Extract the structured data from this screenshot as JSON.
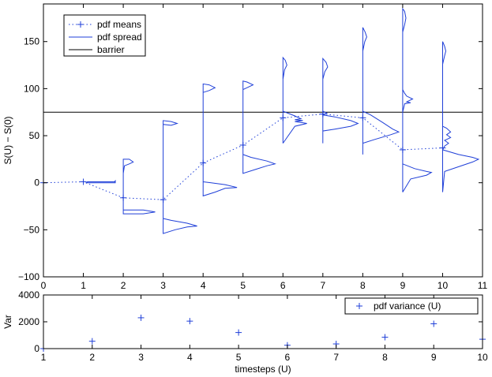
{
  "colors": {
    "series": "#1f3fd8",
    "axis": "#000000",
    "barrier": "#000000",
    "background": "#ffffff"
  },
  "chart_data": [
    {
      "type": "line",
      "title": "",
      "xlabel": "",
      "ylabel": "S(U) − S(0)",
      "xlim": [
        0,
        11
      ],
      "ylim": [
        -100,
        190
      ],
      "xticks": [
        "0",
        "1",
        "2",
        "3",
        "4",
        "5",
        "6",
        "7",
        "8",
        "9",
        "10",
        "11"
      ],
      "yticks": [
        "−100",
        "−50",
        "0",
        "50",
        "100",
        "150"
      ],
      "legend": {
        "position": "top-left",
        "entries": [
          "pdf means",
          "pdf spread",
          "barrier"
        ]
      },
      "barrier": 75,
      "pdf_means": {
        "name": "pdf means",
        "x": [
          0,
          1,
          2,
          3,
          4,
          5,
          6,
          7,
          8,
          9,
          10
        ],
        "y": [
          0,
          1,
          -16,
          -18,
          21,
          40,
          69,
          73,
          69,
          35,
          37
        ]
      },
      "pdf_spread": {
        "name": "pdf spread",
        "segments": [
          {
            "x0": 1,
            "points": [
              [
                1.06,
                0
              ],
              [
                1.08,
                0
              ],
              [
                1.1,
                1
              ],
              [
                1.78,
                1
              ],
              [
                1.8,
                2
              ],
              [
                1.8,
                0
              ],
              [
                1.06,
                0
              ]
            ]
          },
          {
            "x0": 2,
            "points": [
              [
                2,
                -33
              ],
              [
                2,
                25
              ],
              [
                2.15,
                25
              ],
              [
                2.25,
                22
              ],
              [
                2.15,
                20
              ],
              [
                2.03,
                18
              ],
              [
                2,
                10
              ],
              [
                2,
                -33
              ],
              [
                2.5,
                -33
              ],
              [
                2.8,
                -31
              ],
              [
                2.5,
                -29
              ],
              [
                2,
                -29
              ]
            ]
          },
          {
            "x0": 3,
            "points": [
              [
                3,
                -54
              ],
              [
                3,
                66
              ],
              [
                3.2,
                65
              ],
              [
                3.35,
                63
              ],
              [
                3.2,
                61
              ],
              [
                3,
                62
              ],
              [
                3,
                -54
              ],
              [
                3.3,
                -50
              ],
              [
                3.6,
                -47
              ],
              [
                3.85,
                -46
              ],
              [
                3.6,
                -43
              ],
              [
                3.2,
                -40
              ],
              [
                3,
                -38
              ]
            ]
          },
          {
            "x0": 4,
            "points": [
              [
                4,
                -14
              ],
              [
                4,
                105
              ],
              [
                4.15,
                104
              ],
              [
                4.3,
                101
              ],
              [
                4.15,
                98
              ],
              [
                4,
                96
              ],
              [
                4,
                -14
              ],
              [
                4.3,
                -10
              ],
              [
                4.55,
                -6
              ],
              [
                4.85,
                -5
              ],
              [
                4.55,
                -2
              ],
              [
                4.2,
                0
              ],
              [
                4,
                1
              ]
            ]
          },
          {
            "x0": 5,
            "points": [
              [
                5,
                10
              ],
              [
                5,
                108
              ],
              [
                5.1,
                107
              ],
              [
                5.25,
                104
              ],
              [
                5.1,
                101
              ],
              [
                5,
                99
              ],
              [
                5,
                10
              ],
              [
                5.3,
                14
              ],
              [
                5.6,
                18
              ],
              [
                5.8,
                20
              ],
              [
                5.6,
                23
              ],
              [
                5.2,
                27
              ],
              [
                5,
                30
              ]
            ]
          },
          {
            "x0": 6,
            "points": [
              [
                6,
                42
              ],
              [
                6,
                133
              ],
              [
                6.06,
                130
              ],
              [
                6.1,
                125
              ],
              [
                6.04,
                120
              ],
              [
                6,
                110
              ],
              [
                6,
                76
              ],
              [
                6.3,
                71
              ],
              [
                6.45,
                68
              ],
              [
                6.3,
                67
              ],
              [
                6.5,
                66
              ],
              [
                6.3,
                65
              ],
              [
                6.6,
                63
              ],
              [
                6.3,
                60
              ],
              [
                6,
                42
              ]
            ]
          },
          {
            "x0": 7,
            "points": [
              [
                7,
                42
              ],
              [
                7,
                132
              ],
              [
                7.08,
                128
              ],
              [
                7.12,
                123
              ],
              [
                7.05,
                118
              ],
              [
                7,
                110
              ],
              [
                7,
                76
              ],
              [
                7.1,
                74
              ],
              [
                7.0,
                72
              ],
              [
                7.3,
                70
              ],
              [
                7.7,
                66
              ],
              [
                7.88,
                63
              ],
              [
                7.7,
                60
              ],
              [
                7.3,
                57
              ],
              [
                7,
                55
              ],
              [
                7,
                42
              ]
            ]
          },
          {
            "x0": 8,
            "points": [
              [
                8,
                30
              ],
              [
                8,
                165
              ],
              [
                8.06,
                160
              ],
              [
                8.1,
                155
              ],
              [
                8.05,
                150
              ],
              [
                8,
                140
              ],
              [
                8,
                76
              ],
              [
                8.2,
                72
              ],
              [
                8.5,
                64
              ],
              [
                8.75,
                57
              ],
              [
                8.9,
                54
              ],
              [
                8.7,
                51
              ],
              [
                8.3,
                46
              ],
              [
                8,
                42
              ],
              [
                8,
                30
              ]
            ]
          },
          {
            "x0": 9,
            "points": [
              [
                9,
                -10
              ],
              [
                9,
                185
              ],
              [
                9.05,
                182
              ],
              [
                9.08,
                175
              ],
              [
                9.05,
                168
              ],
              [
                9,
                160
              ],
              [
                9,
                99
              ],
              [
                9.05,
                95
              ],
              [
                9.1,
                92
              ],
              [
                9.25,
                89
              ],
              [
                9.1,
                86
              ],
              [
                9.2,
                85
              ],
              [
                9.05,
                84
              ],
              [
                9,
                75
              ],
              [
                9,
                20
              ],
              [
                9.3,
                15
              ],
              [
                9.6,
                12
              ],
              [
                9.72,
                11
              ],
              [
                9.6,
                8
              ],
              [
                9.2,
                4
              ],
              [
                9,
                -10
              ]
            ]
          },
          {
            "x0": 10,
            "points": [
              [
                10,
                -10
              ],
              [
                10,
                150
              ],
              [
                10.05,
                145
              ],
              [
                10.08,
                140
              ],
              [
                10.05,
                135
              ],
              [
                10,
                126
              ],
              [
                10,
                60
              ],
              [
                10.1,
                58
              ],
              [
                10.2,
                54
              ],
              [
                10.1,
                51
              ],
              [
                10.2,
                48
              ],
              [
                10.05,
                45
              ],
              [
                10.15,
                42
              ],
              [
                10.05,
                39
              ],
              [
                10,
                35
              ],
              [
                10.4,
                30
              ],
              [
                10.75,
                27
              ],
              [
                10.9,
                25
              ],
              [
                10.75,
                22
              ],
              [
                10.4,
                17
              ],
              [
                10.05,
                12
              ],
              [
                10,
                -10
              ]
            ]
          }
        ]
      }
    },
    {
      "type": "scatter",
      "title": "",
      "xlabel": "timesteps (U)",
      "ylabel": "Var",
      "xlim": [
        1,
        10
      ],
      "ylim": [
        0,
        4000
      ],
      "xticks": [
        "1",
        "2",
        "3",
        "4",
        "5",
        "6",
        "7",
        "8",
        "9",
        "10"
      ],
      "yticks": [
        "0",
        "2000",
        "4000"
      ],
      "legend": {
        "position": "top-right",
        "entries": [
          "pdf variance (U)"
        ]
      },
      "series": [
        {
          "name": "pdf variance (U)",
          "x": [
            1,
            2,
            3,
            4,
            5,
            6,
            7,
            8,
            9,
            10
          ],
          "y": [
            0,
            550,
            2300,
            2050,
            1200,
            250,
            350,
            850,
            1850,
            700
          ]
        }
      ]
    }
  ]
}
